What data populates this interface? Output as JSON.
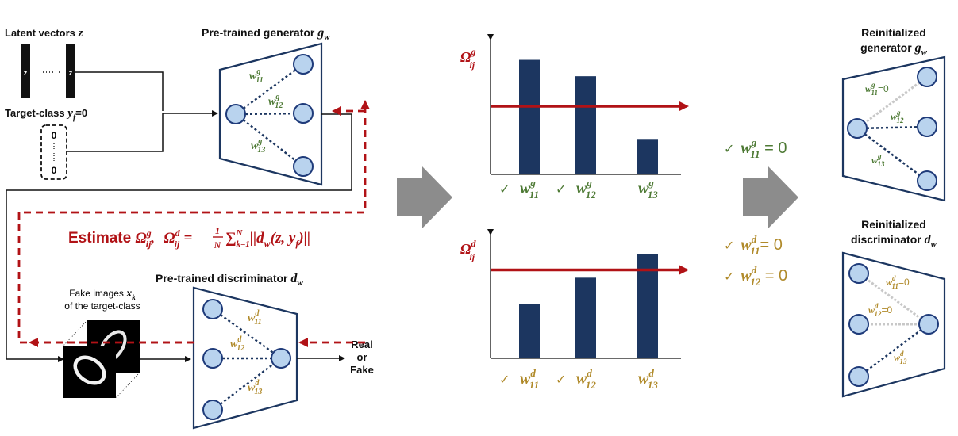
{
  "colors": {
    "navy": "#1c3660",
    "node_fill": "#b9d3ee",
    "node_stroke": "#1f3b7a",
    "red": "#b11216",
    "green": "#4e7a35",
    "gold": "#b08a2a",
    "gray_arrow": "#8c8c8c",
    "zeroed_edge": "#c8c8c8"
  },
  "left": {
    "latent_label": "Latent vectors",
    "latent_sym": "z",
    "z_label": "z",
    "target_label": "Target-class",
    "target_sym": "y",
    "target_sub": "f",
    "target_value": "=0",
    "class_top": "0",
    "class_bottom": "0",
    "generator_title": "Pre-trained generator",
    "generator_sym": "g",
    "generator_sub": "w",
    "discriminator_title": "Pre-trained discriminator",
    "discriminator_sym": "d",
    "discriminator_sub": "w",
    "fake_line1": "Fake images",
    "fake_sym": "x",
    "fake_sub": "k",
    "fake_line2": "of the target-class",
    "real": "Real",
    "or": "or",
    "fake": "Fake",
    "estimate_word": "Estimate",
    "eq_omega": "Ω",
    "eq_g": "g",
    "eq_d": "d",
    "eq_ij": "ij",
    "eq_comma": ",",
    "eq_equals": "=",
    "eq_frac_num": "1",
    "eq_frac_den": "N",
    "eq_sum": "∑",
    "eq_sum_sup": "N",
    "eq_sum_sub": "k=1",
    "eq_body": "||d",
    "eq_w": "w",
    "eq_args": "(z, y",
    "eq_f": "f",
    "eq_close": ")||",
    "w": "w",
    "sup_g": "g",
    "sup_d": "d",
    "sub_11": "11",
    "sub_12": "12",
    "sub_13": "13"
  },
  "chart_data": [
    {
      "type": "bar",
      "title": "Ω_ij^g",
      "title_sym": "Ω",
      "title_sup": "g",
      "title_sub": "ij",
      "categories": [
        "w_11^g",
        "w_12^g",
        "w_13^g"
      ],
      "values": [
        0.84,
        0.72,
        0.26
      ],
      "threshold": 0.5,
      "ylim": [
        0,
        1
      ],
      "checked": [
        true,
        true,
        false
      ],
      "tick_sym": "w",
      "tick_sup": "g",
      "tick_subs": [
        "11",
        "12",
        "13"
      ]
    },
    {
      "type": "bar",
      "title": "Ω_ij^d",
      "title_sym": "Ω",
      "title_sup": "d",
      "title_sub": "ij",
      "categories": [
        "w_11^d",
        "w_12^d",
        "w_13^d"
      ],
      "values": [
        0.42,
        0.62,
        0.8
      ],
      "threshold": 0.68,
      "ylim": [
        0,
        1
      ],
      "checked": [
        true,
        true,
        false
      ],
      "tick_sym": "w",
      "tick_sup": "d",
      "tick_subs": [
        "11",
        "12",
        "13"
      ]
    }
  ],
  "results": {
    "check": "✓",
    "w": "w",
    "g": "g",
    "d": "d",
    "r1_sub": "11",
    "r1_val": " = 0",
    "r2_sub": "11",
    "r2_val": "= 0",
    "r3_sub": "12",
    "r3_val": " = 0"
  },
  "right": {
    "gen_title1": "Reinitialized",
    "gen_title2": "generator",
    "gen_sym": "g",
    "gen_sub": "w",
    "disc_title1": "Reinitialized",
    "disc_title2": "discriminator",
    "disc_sym": "d",
    "disc_sub": "w",
    "zero_suffix": "=0"
  }
}
